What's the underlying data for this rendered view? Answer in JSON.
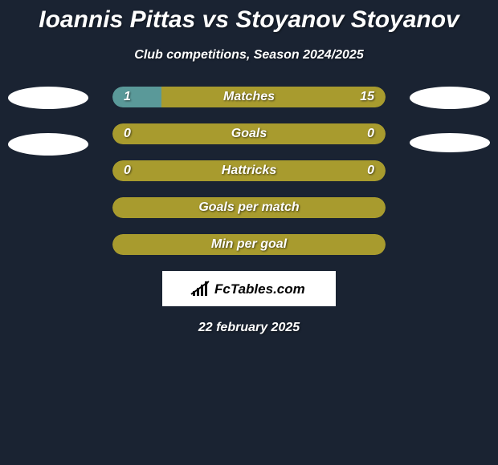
{
  "title": "Ioannis Pittas vs Stoyanov Stoyanov",
  "subtitle": "Club competitions, Season 2024/2025",
  "date": "22 february 2025",
  "logo_text": "FcTables.com",
  "colors": {
    "background": "#1a2332",
    "bar_olive": "#a89b2e",
    "bar_teal": "#5a9999",
    "text": "#ffffff",
    "badge": "#ffffff"
  },
  "stats": [
    {
      "label": "Matches",
      "left_value": "1",
      "right_value": "15",
      "left_pct": 18,
      "right_pct": 82,
      "left_color": "#5a9999",
      "right_color": "#a89b2e",
      "show_values": true
    },
    {
      "label": "Goals",
      "left_value": "0",
      "right_value": "0",
      "left_pct": 100,
      "right_pct": 0,
      "left_color": "#a89b2e",
      "right_color": "#a89b2e",
      "show_values": true
    },
    {
      "label": "Hattricks",
      "left_value": "0",
      "right_value": "0",
      "left_pct": 100,
      "right_pct": 0,
      "left_color": "#a89b2e",
      "right_color": "#a89b2e",
      "show_values": true
    },
    {
      "label": "Goals per match",
      "left_value": "",
      "right_value": "",
      "left_pct": 100,
      "right_pct": 0,
      "left_color": "#a89b2e",
      "right_color": "#a89b2e",
      "show_values": false
    },
    {
      "label": "Min per goal",
      "left_value": "",
      "right_value": "",
      "left_pct": 100,
      "right_pct": 0,
      "left_color": "#a89b2e",
      "right_color": "#a89b2e",
      "show_values": false
    }
  ]
}
